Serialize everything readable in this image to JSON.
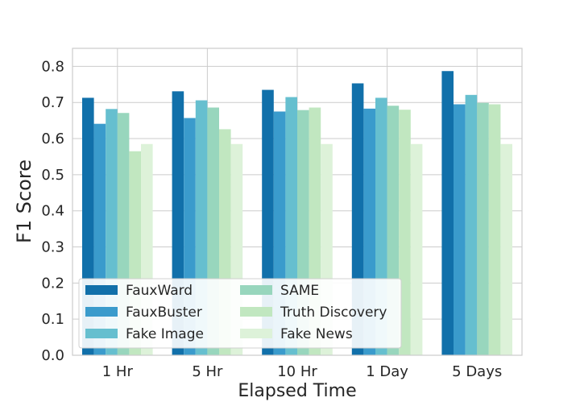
{
  "chart_data": {
    "type": "bar",
    "xlabel": "Elapsed Time",
    "ylabel": "F1 Score",
    "categories": [
      "1 Hr",
      "5 Hr",
      "10 Hr",
      "1 Day",
      "5 Days"
    ],
    "ylim": [
      0,
      0.85
    ],
    "yticks": [
      "0.0",
      "0.1",
      "0.2",
      "0.3",
      "0.4",
      "0.5",
      "0.6",
      "0.7",
      "0.8"
    ],
    "grid": true,
    "legend_position": "lower-left",
    "legend_columns": 2,
    "series": [
      {
        "name": "FauxWard",
        "color": "#1170aa",
        "values": [
          0.713,
          0.731,
          0.735,
          0.753,
          0.787
        ]
      },
      {
        "name": "FauxBuster",
        "color": "#3a9bcc",
        "values": [
          0.641,
          0.657,
          0.675,
          0.683,
          0.695
        ]
      },
      {
        "name": "Fake Image",
        "color": "#66bfcf",
        "values": [
          0.682,
          0.706,
          0.715,
          0.713,
          0.721
        ]
      },
      {
        "name": "SAME",
        "color": "#98d6bd",
        "values": [
          0.671,
          0.686,
          0.679,
          0.691,
          0.699
        ]
      },
      {
        "name": "Truth Discovery",
        "color": "#c1e7c0",
        "values": [
          0.565,
          0.626,
          0.686,
          0.68,
          0.695
        ]
      },
      {
        "name": "Fake News",
        "color": "#ddf2d9",
        "values": [
          0.585,
          0.585,
          0.585,
          0.585,
          0.585
        ]
      }
    ]
  }
}
